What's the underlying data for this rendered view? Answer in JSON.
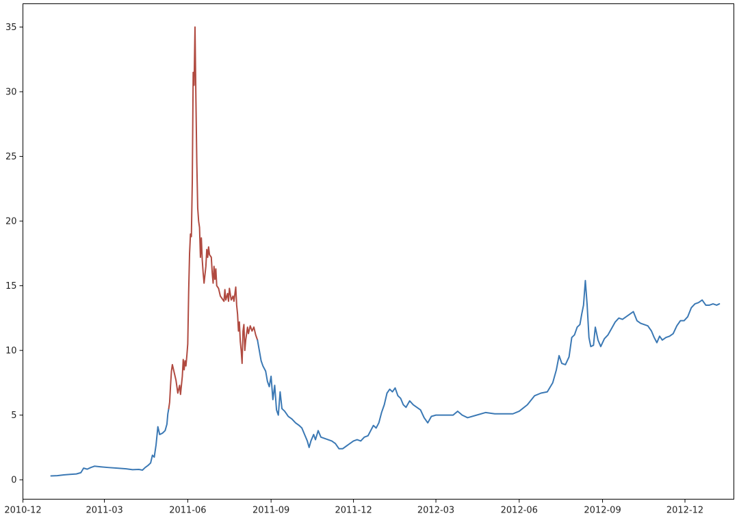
{
  "chart_data": {
    "type": "line",
    "title": "",
    "xlabel": "",
    "ylabel": "",
    "grid": false,
    "legend": "none",
    "x_axis": {
      "kind": "date",
      "range": [
        "2010-12-01",
        "2013-01-24"
      ],
      "ticks": [
        "2010-12-01",
        "2011-03-01",
        "2011-06-01",
        "2011-09-01",
        "2011-12-01",
        "2012-03-01",
        "2012-06-01",
        "2012-09-01",
        "2012-12-01"
      ],
      "tick_labels": [
        "2010-12",
        "2011-03",
        "2011-06",
        "2011-09",
        "2011-12",
        "2012-03",
        "2012-06",
        "2012-09",
        "2012-12"
      ]
    },
    "y_axis": {
      "range": [
        -1.5,
        36.8
      ],
      "ticks": [
        0,
        5,
        10,
        15,
        20,
        25,
        30,
        35
      ],
      "tick_labels": [
        "0",
        "5",
        "10",
        "15",
        "20",
        "25",
        "30",
        "35"
      ]
    },
    "series": [
      {
        "color": "#3a78b4",
        "points": [
          [
            "2011-01-01",
            0.3
          ],
          [
            "2011-01-08",
            0.32
          ],
          [
            "2011-01-15",
            0.38
          ],
          [
            "2011-01-22",
            0.42
          ],
          [
            "2011-01-29",
            0.45
          ],
          [
            "2011-02-03",
            0.55
          ],
          [
            "2011-02-06",
            0.9
          ],
          [
            "2011-02-10",
            0.82
          ],
          [
            "2011-02-14",
            0.95
          ],
          [
            "2011-02-18",
            1.05
          ],
          [
            "2011-02-25",
            1.0
          ],
          [
            "2011-03-05",
            0.95
          ],
          [
            "2011-03-15",
            0.9
          ],
          [
            "2011-03-25",
            0.85
          ],
          [
            "2011-04-01",
            0.78
          ],
          [
            "2011-04-08",
            0.8
          ],
          [
            "2011-04-12",
            0.75
          ],
          [
            "2011-04-15",
            0.95
          ],
          [
            "2011-04-18",
            1.1
          ],
          [
            "2011-04-21",
            1.3
          ],
          [
            "2011-04-23",
            1.9
          ],
          [
            "2011-04-25",
            1.75
          ],
          [
            "2011-04-27",
            2.7
          ],
          [
            "2011-04-29",
            4.1
          ],
          [
            "2011-05-01",
            3.5
          ],
          [
            "2011-05-04",
            3.6
          ],
          [
            "2011-05-07",
            3.8
          ],
          [
            "2011-05-09",
            4.3
          ],
          [
            "2011-05-10",
            5.1
          ],
          [
            "2011-05-11",
            5.5
          ]
        ]
      },
      {
        "color": "#b04a40",
        "points": [
          [
            "2011-05-11",
            5.5
          ],
          [
            "2011-05-12",
            6.0
          ],
          [
            "2011-05-13",
            7.3
          ],
          [
            "2011-05-14",
            8.4
          ],
          [
            "2011-05-15",
            8.9
          ],
          [
            "2011-05-17",
            8.3
          ],
          [
            "2011-05-19",
            7.7
          ],
          [
            "2011-05-21",
            6.7
          ],
          [
            "2011-05-23",
            7.3
          ],
          [
            "2011-05-24",
            6.6
          ],
          [
            "2011-05-26",
            8.0
          ],
          [
            "2011-05-27",
            9.3
          ],
          [
            "2011-05-28",
            8.5
          ],
          [
            "2011-05-29",
            9.2
          ],
          [
            "2011-05-30",
            8.8
          ],
          [
            "2011-05-31",
            9.6
          ],
          [
            "2011-06-01",
            10.5
          ],
          [
            "2011-06-02",
            14.5
          ],
          [
            "2011-06-03",
            17.5
          ],
          [
            "2011-06-04",
            19.0
          ],
          [
            "2011-06-05",
            18.8
          ],
          [
            "2011-06-06",
            23.0
          ],
          [
            "2011-06-07",
            31.5
          ],
          [
            "2011-06-08",
            30.5
          ],
          [
            "2011-06-09",
            35.0
          ],
          [
            "2011-06-10",
            29.5
          ],
          [
            "2011-06-11",
            24.5
          ],
          [
            "2011-06-12",
            21.0
          ],
          [
            "2011-06-13",
            20.0
          ],
          [
            "2011-06-14",
            19.5
          ],
          [
            "2011-06-15",
            17.2
          ],
          [
            "2011-06-16",
            18.7
          ],
          [
            "2011-06-17",
            17.0
          ],
          [
            "2011-06-18",
            16.0
          ],
          [
            "2011-06-19",
            15.2
          ],
          [
            "2011-06-21",
            16.5
          ],
          [
            "2011-06-22",
            17.8
          ],
          [
            "2011-06-23",
            17.2
          ],
          [
            "2011-06-24",
            18.0
          ],
          [
            "2011-06-25",
            17.4
          ],
          [
            "2011-06-27",
            17.2
          ],
          [
            "2011-06-28",
            16.0
          ],
          [
            "2011-06-29",
            15.2
          ],
          [
            "2011-06-30",
            16.5
          ],
          [
            "2011-07-01",
            15.5
          ],
          [
            "2011-07-02",
            16.3
          ],
          [
            "2011-07-03",
            15.0
          ],
          [
            "2011-07-05",
            14.8
          ],
          [
            "2011-07-07",
            14.2
          ],
          [
            "2011-07-09",
            14.0
          ],
          [
            "2011-07-11",
            13.8
          ],
          [
            "2011-07-12",
            14.7
          ],
          [
            "2011-07-13",
            13.9
          ],
          [
            "2011-07-15",
            14.4
          ],
          [
            "2011-07-16",
            13.8
          ],
          [
            "2011-07-17",
            14.8
          ],
          [
            "2011-07-19",
            13.9
          ],
          [
            "2011-07-21",
            14.2
          ],
          [
            "2011-07-22",
            13.8
          ],
          [
            "2011-07-24",
            14.9
          ],
          [
            "2011-07-25",
            13.5
          ],
          [
            "2011-07-26",
            12.8
          ],
          [
            "2011-07-27",
            11.5
          ],
          [
            "2011-07-28",
            12.2
          ],
          [
            "2011-07-29",
            10.7
          ],
          [
            "2011-07-30",
            10.0
          ],
          [
            "2011-07-31",
            9.0
          ],
          [
            "2011-08-01",
            11.5
          ],
          [
            "2011-08-02",
            12.0
          ],
          [
            "2011-08-03",
            10.0
          ],
          [
            "2011-08-04",
            10.8
          ],
          [
            "2011-08-06",
            11.8
          ],
          [
            "2011-08-07",
            11.3
          ],
          [
            "2011-08-09",
            11.9
          ],
          [
            "2011-08-11",
            11.5
          ],
          [
            "2011-08-13",
            11.8
          ],
          [
            "2011-08-15",
            11.2
          ],
          [
            "2011-08-17",
            10.8
          ]
        ]
      },
      {
        "color": "#3a78b4",
        "points": [
          [
            "2011-08-17",
            10.8
          ],
          [
            "2011-08-19",
            10.0
          ],
          [
            "2011-08-21",
            9.2
          ],
          [
            "2011-08-23",
            8.8
          ],
          [
            "2011-08-26",
            8.4
          ],
          [
            "2011-08-28",
            7.6
          ],
          [
            "2011-08-30",
            7.2
          ],
          [
            "2011-09-01",
            8.0
          ],
          [
            "2011-09-03",
            6.2
          ],
          [
            "2011-09-05",
            7.3
          ],
          [
            "2011-09-07",
            5.4
          ],
          [
            "2011-09-09",
            5.0
          ],
          [
            "2011-09-11",
            6.8
          ],
          [
            "2011-09-13",
            5.5
          ],
          [
            "2011-09-16",
            5.3
          ],
          [
            "2011-09-20",
            4.9
          ],
          [
            "2011-09-24",
            4.7
          ],
          [
            "2011-09-28",
            4.4
          ],
          [
            "2011-10-02",
            4.2
          ],
          [
            "2011-10-05",
            4.0
          ],
          [
            "2011-10-08",
            3.5
          ],
          [
            "2011-10-11",
            3.0
          ],
          [
            "2011-10-13",
            2.5
          ],
          [
            "2011-10-15",
            3.0
          ],
          [
            "2011-10-18",
            3.5
          ],
          [
            "2011-10-20",
            3.1
          ],
          [
            "2011-10-23",
            3.8
          ],
          [
            "2011-10-26",
            3.3
          ],
          [
            "2011-10-30",
            3.2
          ],
          [
            "2011-11-03",
            3.1
          ],
          [
            "2011-11-07",
            3.0
          ],
          [
            "2011-11-11",
            2.8
          ],
          [
            "2011-11-15",
            2.4
          ],
          [
            "2011-11-19",
            2.4
          ],
          [
            "2011-11-23",
            2.6
          ],
          [
            "2011-11-27",
            2.8
          ],
          [
            "2011-12-01",
            3.0
          ],
          [
            "2011-12-05",
            3.1
          ],
          [
            "2011-12-09",
            3.0
          ],
          [
            "2011-12-13",
            3.3
          ],
          [
            "2011-12-17",
            3.4
          ],
          [
            "2011-12-20",
            3.8
          ],
          [
            "2011-12-23",
            4.2
          ],
          [
            "2011-12-26",
            4.0
          ],
          [
            "2011-12-29",
            4.4
          ],
          [
            "2012-01-01",
            5.2
          ],
          [
            "2012-01-04",
            5.8
          ],
          [
            "2012-01-07",
            6.7
          ],
          [
            "2012-01-10",
            7.0
          ],
          [
            "2012-01-13",
            6.8
          ],
          [
            "2012-01-16",
            7.1
          ],
          [
            "2012-01-19",
            6.5
          ],
          [
            "2012-01-22",
            6.3
          ],
          [
            "2012-01-25",
            5.8
          ],
          [
            "2012-01-28",
            5.6
          ],
          [
            "2012-02-01",
            6.1
          ],
          [
            "2012-02-05",
            5.8
          ],
          [
            "2012-02-09",
            5.6
          ],
          [
            "2012-02-13",
            5.4
          ],
          [
            "2012-02-17",
            4.8
          ],
          [
            "2012-02-21",
            4.4
          ],
          [
            "2012-02-25",
            4.9
          ],
          [
            "2012-03-01",
            5.0
          ],
          [
            "2012-03-10",
            5.0
          ],
          [
            "2012-03-20",
            5.0
          ],
          [
            "2012-03-25",
            5.3
          ],
          [
            "2012-03-30",
            5.0
          ],
          [
            "2012-04-05",
            4.8
          ],
          [
            "2012-04-15",
            5.0
          ],
          [
            "2012-04-25",
            5.2
          ],
          [
            "2012-05-05",
            5.1
          ],
          [
            "2012-05-15",
            5.1
          ],
          [
            "2012-05-25",
            5.1
          ],
          [
            "2012-06-01",
            5.3
          ],
          [
            "2012-06-10",
            5.8
          ],
          [
            "2012-06-18",
            6.5
          ],
          [
            "2012-06-25",
            6.7
          ],
          [
            "2012-07-02",
            6.8
          ],
          [
            "2012-07-08",
            7.5
          ],
          [
            "2012-07-12",
            8.5
          ],
          [
            "2012-07-15",
            9.6
          ],
          [
            "2012-07-18",
            9.0
          ],
          [
            "2012-07-22",
            8.9
          ],
          [
            "2012-07-26",
            9.5
          ],
          [
            "2012-07-29",
            11.0
          ],
          [
            "2012-08-01",
            11.2
          ],
          [
            "2012-08-04",
            11.8
          ],
          [
            "2012-08-07",
            12.0
          ],
          [
            "2012-08-09",
            12.8
          ],
          [
            "2012-08-11",
            13.5
          ],
          [
            "2012-08-13",
            15.4
          ],
          [
            "2012-08-15",
            13.5
          ],
          [
            "2012-08-17",
            11.0
          ],
          [
            "2012-08-19",
            10.3
          ],
          [
            "2012-08-22",
            10.4
          ],
          [
            "2012-08-24",
            11.8
          ],
          [
            "2012-08-27",
            10.8
          ],
          [
            "2012-08-30",
            10.3
          ],
          [
            "2012-09-03",
            10.9
          ],
          [
            "2012-09-07",
            11.2
          ],
          [
            "2012-09-11",
            11.7
          ],
          [
            "2012-09-15",
            12.2
          ],
          [
            "2012-09-19",
            12.5
          ],
          [
            "2012-09-23",
            12.4
          ],
          [
            "2012-09-27",
            12.6
          ],
          [
            "2012-10-01",
            12.8
          ],
          [
            "2012-10-05",
            13.0
          ],
          [
            "2012-10-09",
            12.3
          ],
          [
            "2012-10-13",
            12.1
          ],
          [
            "2012-10-17",
            12.0
          ],
          [
            "2012-10-21",
            11.9
          ],
          [
            "2012-10-25",
            11.5
          ],
          [
            "2012-10-28",
            11.0
          ],
          [
            "2012-10-31",
            10.6
          ],
          [
            "2012-11-03",
            11.1
          ],
          [
            "2012-11-06",
            10.8
          ],
          [
            "2012-11-10",
            11.0
          ],
          [
            "2012-11-14",
            11.1
          ],
          [
            "2012-11-18",
            11.3
          ],
          [
            "2012-11-22",
            11.9
          ],
          [
            "2012-11-26",
            12.3
          ],
          [
            "2012-11-30",
            12.3
          ],
          [
            "2012-12-04",
            12.6
          ],
          [
            "2012-12-08",
            13.3
          ],
          [
            "2012-12-12",
            13.6
          ],
          [
            "2012-12-16",
            13.7
          ],
          [
            "2012-12-20",
            13.9
          ],
          [
            "2012-12-24",
            13.5
          ],
          [
            "2012-12-28",
            13.5
          ],
          [
            "2013-01-01",
            13.6
          ],
          [
            "2013-01-05",
            13.5
          ],
          [
            "2013-01-08",
            13.6
          ]
        ]
      }
    ]
  }
}
